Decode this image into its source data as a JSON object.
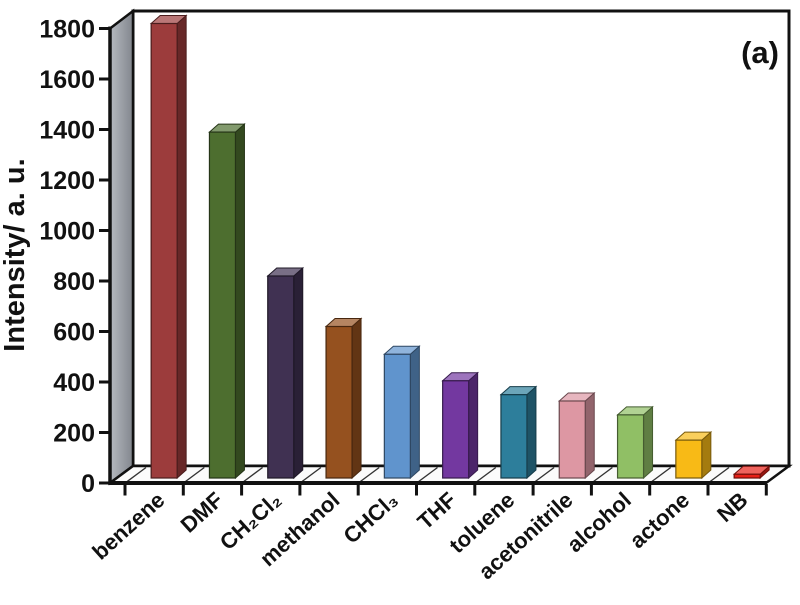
{
  "figure": {
    "annotation": "(a)",
    "background": "#ffffff"
  },
  "chart_data": {
    "type": "bar",
    "style": "3d-column",
    "title": "",
    "xlabel": "",
    "ylabel": "Intensity/ a. u.",
    "annotation": "(a)",
    "ylim": [
      0,
      1800
    ],
    "ytick_interval": 200,
    "yticks": [
      0,
      200,
      400,
      600,
      800,
      1000,
      1200,
      1400,
      1600,
      1800
    ],
    "grid": false,
    "legend": false,
    "categories": [
      "benzene",
      "DMF",
      "CH₂Cl₂",
      "methanol",
      "CHCl₃",
      "THF",
      "toluene",
      "acetonitrile",
      "alcohol",
      "actone",
      "NB"
    ],
    "values": [
      1800,
      1370,
      800,
      600,
      490,
      385,
      330,
      305,
      250,
      150,
      15
    ],
    "bar_colors": [
      "#9c3c3c",
      "#4d6e2f",
      "#403152",
      "#95511f",
      "#6094cd",
      "#7338a0",
      "#2d7e9b",
      "#dd97a3",
      "#90bf65",
      "#f8ba16",
      "#e82017"
    ],
    "wall_color_light": "#b6bac1",
    "wall_color_dark": "#82868d",
    "floor_color": "#fbfbfb",
    "frame_color": "#111111"
  }
}
